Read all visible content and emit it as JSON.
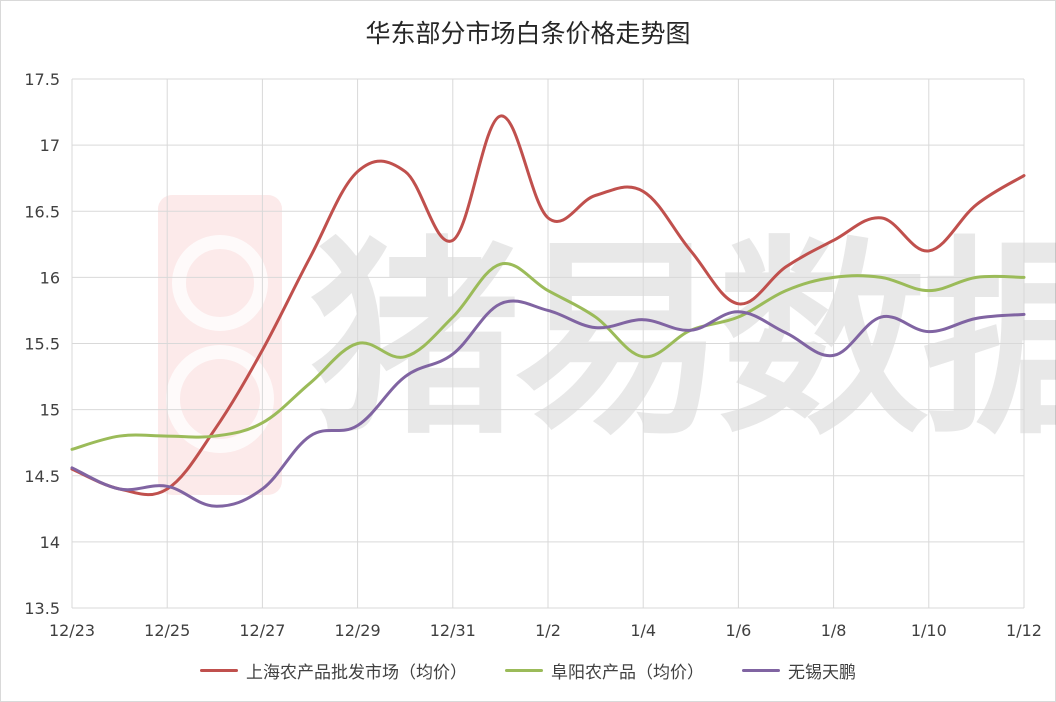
{
  "chart_data": {
    "type": "line",
    "title": "华东部分市场白条价格走势图",
    "watermark": "猪易数据",
    "xlabel": "",
    "ylabel": "",
    "ylim": [
      13.5,
      17.5
    ],
    "yticks": [
      "13.5",
      "14",
      "14.5",
      "15",
      "15.5",
      "16",
      "16.5",
      "17",
      "17.5"
    ],
    "categories": [
      "12/23",
      "12/24",
      "12/25",
      "12/26",
      "12/27",
      "12/28",
      "12/29",
      "12/30",
      "12/31",
      "1/1",
      "1/2",
      "1/3",
      "1/4",
      "1/5",
      "1/6",
      "1/7",
      "1/8",
      "1/9",
      "1/10",
      "1/11",
      "1/12"
    ],
    "xtick_labels": [
      "12/23",
      "12/25",
      "12/27",
      "12/29",
      "12/31",
      "1/2",
      "1/4",
      "1/6",
      "1/8",
      "1/10",
      "1/12"
    ],
    "grid": true,
    "legend_position": "bottom",
    "series": [
      {
        "name": "上海农产品批发市场（均价）",
        "color": "#c0504d",
        "values": [
          14.55,
          14.4,
          14.4,
          14.85,
          15.45,
          16.15,
          16.8,
          16.8,
          16.28,
          17.22,
          16.45,
          16.62,
          16.65,
          16.2,
          15.8,
          16.08,
          16.28,
          16.45,
          16.2,
          16.55,
          16.77
        ]
      },
      {
        "name": "阜阳农产品（均价）",
        "color": "#9bbb59",
        "values": [
          14.7,
          14.8,
          14.8,
          14.8,
          14.9,
          15.2,
          15.5,
          15.4,
          15.7,
          16.1,
          15.9,
          15.7,
          15.4,
          15.6,
          15.7,
          15.9,
          16.0,
          16.0,
          15.9,
          16.0,
          16.0
        ]
      },
      {
        "name": "无锡天鹏",
        "color": "#8064a2",
        "values": [
          14.56,
          14.4,
          14.42,
          14.27,
          14.4,
          14.8,
          14.88,
          15.25,
          15.42,
          15.8,
          15.75,
          15.62,
          15.68,
          15.6,
          15.74,
          15.58,
          15.41,
          15.7,
          15.59,
          15.69,
          15.72
        ]
      }
    ]
  }
}
